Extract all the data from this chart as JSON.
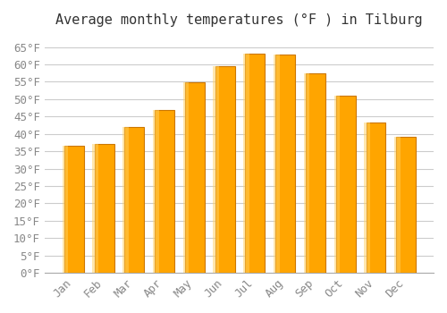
{
  "title": "Average monthly temperatures (°F ) in Tilburg",
  "months": [
    "Jan",
    "Feb",
    "Mar",
    "Apr",
    "May",
    "Jun",
    "Jul",
    "Aug",
    "Sep",
    "Oct",
    "Nov",
    "Dec"
  ],
  "values": [
    36.5,
    37.2,
    42.1,
    46.8,
    54.9,
    59.4,
    63.1,
    62.8,
    57.4,
    51.1,
    43.3,
    39.2
  ],
  "bar_color": "#FFA500",
  "bar_edge_color": "#CC7700",
  "background_color": "#FFFFFF",
  "grid_color": "#CCCCCC",
  "ylim": [
    0,
    68
  ],
  "yticks": [
    0,
    5,
    10,
    15,
    20,
    25,
    30,
    35,
    40,
    45,
    50,
    55,
    60,
    65
  ],
  "ylabel_format": "°F",
  "title_fontsize": 11,
  "tick_fontsize": 9,
  "font_family": "monospace"
}
